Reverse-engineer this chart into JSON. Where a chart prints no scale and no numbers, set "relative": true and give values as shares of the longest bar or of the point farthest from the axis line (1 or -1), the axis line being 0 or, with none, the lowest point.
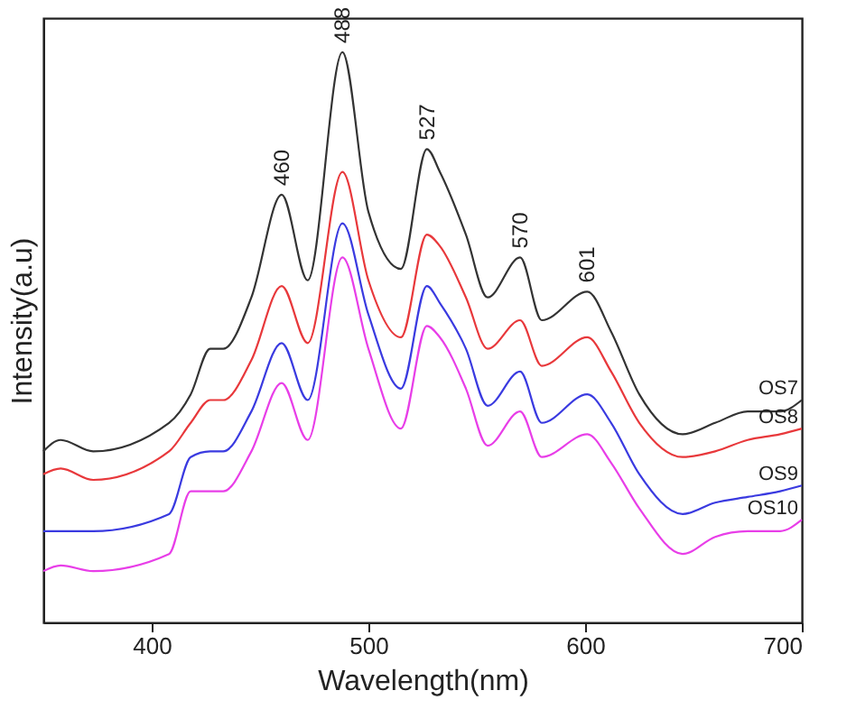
{
  "chart_data": {
    "type": "line",
    "relative": true,
    "xlabel": "Wavelength(nm)",
    "ylabel": "Intensity(a.u)",
    "x": [
      350,
      358,
      373,
      408,
      418,
      427,
      433,
      446,
      460,
      472,
      488,
      500,
      515,
      527,
      533,
      545,
      555,
      570,
      580,
      601,
      612,
      625,
      645,
      660,
      675,
      690,
      700
    ],
    "xlim": [
      350,
      700
    ],
    "xticks": [
      400,
      500,
      600,
      700
    ],
    "grid": false,
    "legend": false,
    "marker": "none",
    "line_style": "solid",
    "series": [
      {
        "name": "OS7",
        "color": "#333333",
        "values": [
          0.3,
          0.32,
          0.3,
          0.35,
          0.4,
          0.48,
          0.48,
          0.57,
          0.75,
          0.6,
          1.0,
          0.72,
          0.62,
          0.83,
          0.79,
          0.68,
          0.57,
          0.64,
          0.53,
          0.58,
          0.51,
          0.4,
          0.33,
          0.35,
          0.37,
          0.37,
          0.39
        ]
      },
      {
        "name": "OS8",
        "color": "#e8383b",
        "values": [
          0.26,
          0.27,
          0.25,
          0.3,
          0.35,
          0.39,
          0.39,
          0.46,
          0.59,
          0.49,
          0.79,
          0.6,
          0.5,
          0.68,
          0.66,
          0.57,
          0.48,
          0.53,
          0.45,
          0.5,
          0.44,
          0.35,
          0.29,
          0.3,
          0.32,
          0.33,
          0.34
        ]
      },
      {
        "name": "OS9",
        "color": "#3a3ae0",
        "values": [
          0.16,
          0.16,
          0.16,
          0.19,
          0.29,
          0.3,
          0.3,
          0.37,
          0.49,
          0.39,
          0.7,
          0.54,
          0.41,
          0.59,
          0.56,
          0.48,
          0.38,
          0.44,
          0.35,
          0.4,
          0.35,
          0.26,
          0.19,
          0.21,
          0.22,
          0.23,
          0.24
        ]
      },
      {
        "name": "OS10",
        "color": "#e83ee8",
        "values": [
          0.09,
          0.1,
          0.09,
          0.12,
          0.23,
          0.23,
          0.23,
          0.3,
          0.42,
          0.32,
          0.64,
          0.48,
          0.34,
          0.52,
          0.5,
          0.41,
          0.31,
          0.37,
          0.29,
          0.33,
          0.28,
          0.2,
          0.12,
          0.15,
          0.16,
          0.16,
          0.18
        ]
      }
    ],
    "annotations": [
      {
        "text": "460",
        "x": 460,
        "y": 0.75
      },
      {
        "text": "488",
        "x": 488,
        "y": 1.0
      },
      {
        "text": "527",
        "x": 527,
        "y": 0.83
      },
      {
        "text": "570",
        "x": 570,
        "y": 0.64
      },
      {
        "text": "601",
        "x": 601,
        "y": 0.58
      }
    ]
  }
}
